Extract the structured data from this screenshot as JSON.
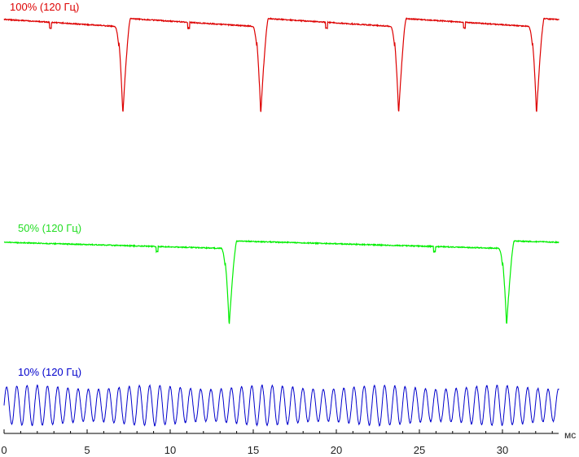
{
  "chart_data": {
    "type": "line",
    "title": "",
    "xlabel": "",
    "ylabel": "",
    "x_unit": "мс",
    "xlim": [
      0,
      33.4
    ],
    "x_ticks": [
      0,
      5,
      10,
      15,
      20,
      25,
      30
    ],
    "grid": false,
    "series": [
      {
        "name": "100% (120 Гц)",
        "color": "#dd0000",
        "period_ms": 8.33,
        "dip_times_ms": [
          6.9,
          15.2,
          23.5,
          31.8
        ],
        "dip_width_ms": 0.5,
        "notch_times_ms": [
          2.8,
          11.1,
          19.4,
          27.7
        ],
        "baseline_level": 0.97,
        "dip_level": 0.0,
        "x_end_ms": 33.4
      },
      {
        "name": "50% (120 Гц)",
        "color": "#00ee00",
        "period_ms": 16.7,
        "dip_times_ms": [
          13.3,
          30.0
        ],
        "dip_width_ms": 0.5,
        "notch_times_ms": [
          9.2,
          25.9
        ],
        "baseline_level": 0.97,
        "dip_level": 0.0,
        "x_end_ms": 33.4
      },
      {
        "name": "10% (120 Гц)",
        "color": "#0000cc",
        "oscillation_period_ms": 0.615,
        "amplitude_range": [
          0.0,
          1.0
        ],
        "x_end_ms": 33.4
      }
    ]
  }
}
